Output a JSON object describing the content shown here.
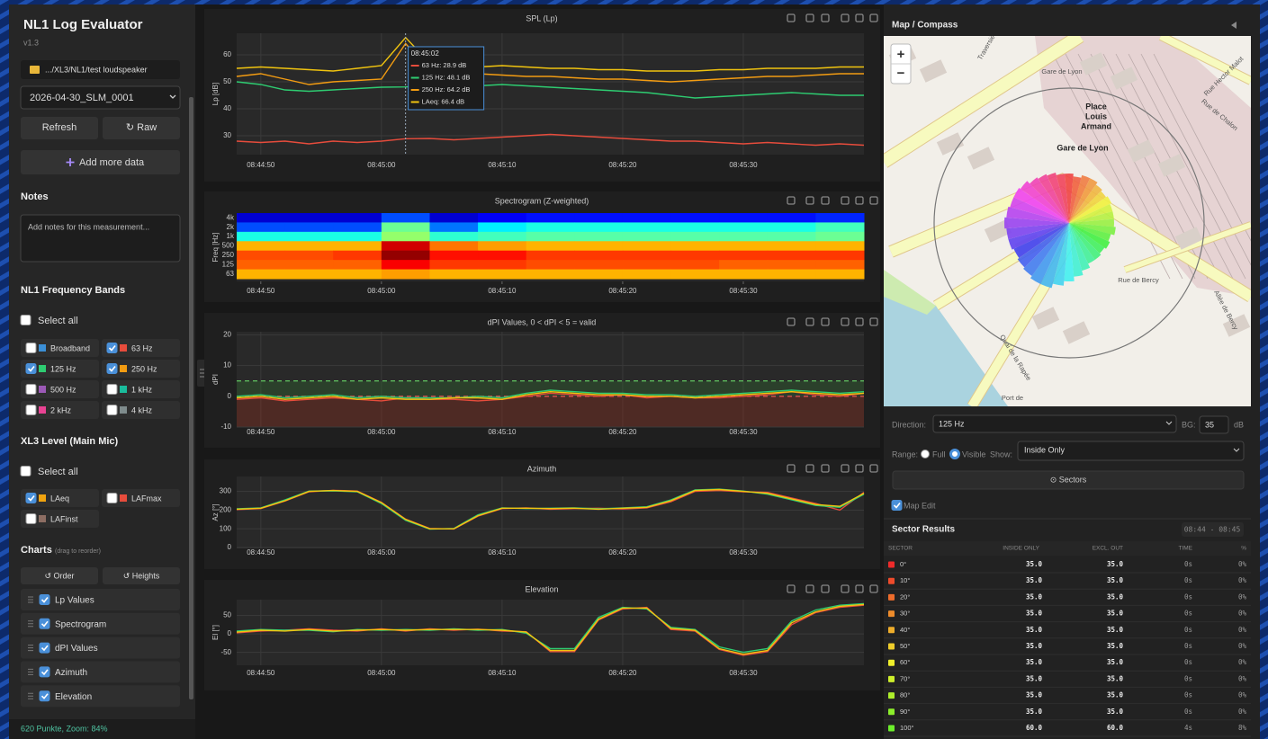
{
  "sidebar": {
    "title": "NL1 Log Evaluator",
    "version": "v1.3",
    "path": ".../XL3/NL1/test loudspeaker",
    "file": "2026-04-30_SLM_0001",
    "buttons": [
      "Refresh",
      "↻ Raw"
    ],
    "add_data": "Add more data",
    "notes_heading": "Notes",
    "notes_placeholder": "Add notes for this measurement...",
    "bands_heading": "NL1 Frequency Bands",
    "bands_select_all": "Select all",
    "bands": [
      {
        "label": "Broadband",
        "color": "#3b8fd6",
        "checked": false
      },
      {
        "label": "63 Hz",
        "color": "#e74c3c",
        "checked": true
      },
      {
        "label": "125 Hz",
        "color": "#2ecc71",
        "checked": true
      },
      {
        "label": "250 Hz",
        "color": "#f39c12",
        "checked": true
      },
      {
        "label": "500 Hz",
        "color": "#9b59b6",
        "checked": false
      },
      {
        "label": "1 kHz",
        "color": "#1abc9c",
        "checked": false
      },
      {
        "label": "2 kHz",
        "color": "#e84393",
        "checked": false
      },
      {
        "label": "4 kHz",
        "color": "#7f8c8d",
        "checked": false
      }
    ],
    "level_heading": "XL3 Level (Main Mic)",
    "level_select_all": "Select all",
    "levels": [
      {
        "label": "LAeq",
        "color": "#f1a40f",
        "checked": true
      },
      {
        "label": "LAFmax",
        "color": "#e74c3c",
        "checked": false
      },
      {
        "label": "LAFinst",
        "color": "#8d6e63",
        "checked": false
      }
    ],
    "charts_heading": "Charts",
    "charts_hint": "(drag to reorder)",
    "chart_buttons": [
      "↺ Order",
      "↺ Heights"
    ],
    "chart_list": [
      {
        "label": "Lp Values",
        "checked": true
      },
      {
        "label": "Spectrogram",
        "checked": true
      },
      {
        "label": "dPI Values",
        "checked": true
      },
      {
        "label": "Azimuth",
        "checked": true
      },
      {
        "label": "Elevation",
        "checked": true
      }
    ],
    "status": "620 Punkte, Zoom: 84%"
  },
  "chart_data": [
    {
      "type": "line",
      "title": "SPL (Lp)",
      "y_label": "Lp [dB]",
      "x": [
        "08:44:48",
        "08:44:50",
        "08:44:52",
        "08:44:54",
        "08:44:56",
        "08:44:58",
        "08:45:00",
        "08:45:02",
        "08:45:04",
        "08:45:06",
        "08:45:08",
        "08:45:10",
        "08:45:12",
        "08:45:14",
        "08:45:16",
        "08:45:18",
        "08:45:20",
        "08:45:22",
        "08:45:24",
        "08:45:26",
        "08:45:28",
        "08:45:30",
        "08:45:32",
        "08:45:34",
        "08:45:36",
        "08:45:38",
        "08:45:40"
      ],
      "xlim": [
        "08:44:48",
        "08:45:40"
      ],
      "xticks": [
        "08:44:50",
        "08:45:00",
        "08:45:10",
        "08:45:20",
        "08:45:30"
      ],
      "ylim": [
        23,
        68
      ],
      "yticks": [
        30,
        40,
        50,
        60
      ],
      "grid": true,
      "series": [
        {
          "color": "#e74c3c",
          "values": [
            28,
            27.5,
            28,
            27,
            28,
            27.5,
            28,
            28.9,
            29,
            28.5,
            29,
            29.5,
            30,
            30.5,
            30,
            29.5,
            29,
            28.5,
            28,
            28,
            27.5,
            27,
            27.5,
            27,
            26.5,
            27,
            26.5
          ]
        },
        {
          "color": "#2ecc71",
          "values": [
            50,
            49,
            47,
            46.5,
            47,
            47.5,
            48,
            48.1,
            48.5,
            49,
            48.5,
            49,
            48.5,
            48,
            47.5,
            47,
            46.5,
            46,
            45,
            44,
            44.5,
            45,
            45.5,
            46,
            45.5,
            45,
            45
          ]
        },
        {
          "color": "#f39c12",
          "values": [
            52,
            53,
            51,
            49,
            50,
            50.5,
            51,
            64.2,
            54,
            52.5,
            53,
            52.5,
            52,
            52,
            51.5,
            51,
            51,
            50.5,
            50,
            50.5,
            51,
            51.5,
            52,
            52,
            52.5,
            53,
            53
          ]
        },
        {
          "color": "#f1c40f",
          "values": [
            55,
            55.5,
            55,
            54.5,
            54,
            55,
            56,
            66.4,
            57,
            56,
            55.5,
            56,
            55.5,
            55,
            55,
            54.5,
            54.5,
            54,
            54,
            54,
            54.5,
            54.5,
            55,
            55,
            55,
            55.5,
            55.5
          ]
        }
      ],
      "tooltip": {
        "title": "08:45:02",
        "lines": [
          "63 Hz: 28.9 dB",
          "125 Hz: 48.1 dB",
          "250 Hz: 64.2 dB",
          "LAeq: 66.4 dB"
        ]
      }
    },
    {
      "type": "heatmap",
      "title": "Spectrogram (Z-weighted)",
      "y_label": "Freq [Hz]",
      "colormap": "jet",
      "zlim": [
        20,
        70
      ],
      "x": [
        "08:44:48",
        "08:44:52",
        "08:44:56",
        "08:45:00",
        "08:45:04",
        "08:45:08",
        "08:45:12",
        "08:45:16",
        "08:45:20",
        "08:45:24",
        "08:45:28",
        "08:45:32",
        "08:45:36",
        "08:45:40"
      ],
      "xlim": [
        "08:44:48",
        "08:45:40"
      ],
      "xticks": [
        "08:44:50",
        "08:45:00",
        "08:45:10",
        "08:45:20",
        "08:45:30"
      ],
      "categories": [
        "4k",
        "2k",
        "1k",
        "500",
        "250",
        "125",
        "63"
      ],
      "values": [
        [
          24,
          24,
          24,
          30,
          24,
          26,
          27,
          27,
          27,
          27,
          27,
          27,
          28
        ],
        [
          30,
          30,
          30,
          44,
          32,
          38,
          40,
          40,
          40,
          40,
          40,
          40,
          42
        ],
        [
          40,
          40,
          40,
          46,
          41,
          42,
          43,
          43,
          43,
          43,
          43,
          43,
          44
        ],
        [
          55,
          55,
          55,
          66,
          58,
          56,
          55,
          55,
          55,
          55,
          55,
          55,
          55
        ],
        [
          60,
          60,
          61,
          69,
          63,
          63,
          61,
          61,
          61,
          61,
          61,
          61,
          61
        ],
        [
          59,
          59,
          59,
          64,
          61,
          61,
          60,
          60,
          60,
          60,
          59,
          59,
          59
        ],
        [
          55,
          55,
          55,
          56,
          55,
          55,
          55,
          55,
          55,
          55,
          55,
          55,
          55
        ]
      ]
    },
    {
      "type": "line",
      "title": "dPI Values, 0 < dPI < 5 = valid",
      "y_label": "dPI",
      "x": [
        "08:44:48",
        "08:44:50",
        "08:44:52",
        "08:44:54",
        "08:44:56",
        "08:44:58",
        "08:45:00",
        "08:45:02",
        "08:45:04",
        "08:45:06",
        "08:45:08",
        "08:45:10",
        "08:45:12",
        "08:45:14",
        "08:45:16",
        "08:45:18",
        "08:45:20",
        "08:45:22",
        "08:45:24",
        "08:45:26",
        "08:45:28",
        "08:45:30",
        "08:45:32",
        "08:45:34",
        "08:45:36",
        "08:45:38",
        "08:45:40"
      ],
      "xlim": [
        "08:44:48",
        "08:45:40"
      ],
      "xticks": [
        "08:44:50",
        "08:45:00",
        "08:45:10",
        "08:45:20",
        "08:45:30"
      ],
      "ylim": [
        -10,
        21
      ],
      "yticks": [
        -10,
        0,
        10,
        20
      ],
      "grid": true,
      "thresholds": [
        {
          "value": 0,
          "color": "#d9534f"
        },
        {
          "value": 5,
          "color": "#5cb85c"
        }
      ],
      "series": [
        {
          "color": "#e74c3c",
          "values": [
            -1,
            -0.5,
            -1.5,
            -1,
            -0.5,
            -1,
            -1.5,
            -0.5,
            -1,
            -1,
            -1.5,
            -1,
            0,
            1,
            0.5,
            0,
            0.5,
            -0.5,
            0,
            -0.5,
            -0.5,
            0,
            0.5,
            1.5,
            0.5,
            0,
            1
          ]
        },
        {
          "color": "#2ecc71",
          "values": [
            0,
            0.5,
            -0.5,
            0,
            0.5,
            -0.5,
            0,
            -0.5,
            -0.5,
            -0.5,
            0,
            -0.5,
            1,
            2,
            1.5,
            1,
            1,
            0.5,
            0.5,
            0,
            0.5,
            1,
            1.5,
            2,
            1.5,
            1,
            1.5
          ]
        },
        {
          "color": "#f1c40f",
          "values": [
            -0.5,
            0,
            -1,
            -0.5,
            0,
            -1,
            -0.5,
            -1,
            -1,
            -0.5,
            -0.5,
            -1,
            0.5,
            1.5,
            1,
            0.5,
            0.5,
            0,
            0,
            -0.5,
            0,
            0.5,
            1,
            1.5,
            1,
            0.5,
            1
          ]
        }
      ]
    },
    {
      "type": "line",
      "title": "Azimuth",
      "y_label": "Az [°]",
      "x": [
        "08:44:48",
        "08:44:50",
        "08:44:52",
        "08:44:54",
        "08:44:56",
        "08:44:58",
        "08:45:00",
        "08:45:02",
        "08:45:04",
        "08:45:06",
        "08:45:08",
        "08:45:10",
        "08:45:12",
        "08:45:14",
        "08:45:16",
        "08:45:18",
        "08:45:20",
        "08:45:22",
        "08:45:24",
        "08:45:26",
        "08:45:28",
        "08:45:30",
        "08:45:32",
        "08:45:34",
        "08:45:36",
        "08:45:38",
        "08:45:40"
      ],
      "xlim": [
        "08:44:48",
        "08:45:40"
      ],
      "xticks": [
        "08:44:50",
        "08:45:00",
        "08:45:10",
        "08:45:20",
        "08:45:30"
      ],
      "ylim": [
        -5,
        380
      ],
      "yticks": [
        0,
        100,
        200,
        300
      ],
      "grid": true,
      "series": [
        {
          "color": "#e74c3c",
          "values": [
            203,
            208,
            248,
            298,
            306,
            302,
            242,
            152,
            102,
            99,
            168,
            208,
            212,
            205,
            208,
            210,
            206,
            212,
            245,
            300,
            305,
            298,
            295,
            265,
            235,
            200,
            295
          ]
        },
        {
          "color": "#2ecc71",
          "values": [
            207,
            212,
            255,
            302,
            303,
            298,
            235,
            145,
            98,
            102,
            175,
            212,
            208,
            210,
            212,
            207,
            212,
            218,
            255,
            308,
            312,
            302,
            285,
            255,
            225,
            215,
            285
          ]
        },
        {
          "color": "#f1c40f",
          "values": [
            205,
            210,
            250,
            300,
            305,
            300,
            240,
            150,
            100,
            100,
            170,
            210,
            210,
            208,
            210,
            205,
            210,
            215,
            250,
            305,
            310,
            300,
            290,
            260,
            230,
            220,
            290
          ]
        }
      ]
    },
    {
      "type": "line",
      "title": "Elevation",
      "y_label": "El [°]",
      "x": [
        "08:44:48",
        "08:44:50",
        "08:44:52",
        "08:44:54",
        "08:44:56",
        "08:44:58",
        "08:45:00",
        "08:45:02",
        "08:45:04",
        "08:45:06",
        "08:45:08",
        "08:45:10",
        "08:45:12",
        "08:45:14",
        "08:45:16",
        "08:45:18",
        "08:45:20",
        "08:45:22",
        "08:45:24",
        "08:45:26",
        "08:45:28",
        "08:45:30",
        "08:45:32",
        "08:45:34",
        "08:45:36",
        "08:45:38",
        "08:45:40"
      ],
      "xlim": [
        "08:44:48",
        "08:45:40"
      ],
      "xticks": [
        "08:44:50",
        "08:45:00",
        "08:45:10",
        "08:45:20",
        "08:45:30"
      ],
      "ylim": [
        -85,
        93
      ],
      "yticks": [
        -50,
        0,
        50
      ],
      "grid": true,
      "series": [
        {
          "color": "#e74c3c",
          "values": [
            3,
            8,
            10,
            14,
            10,
            8,
            14,
            8,
            14,
            10,
            13,
            8,
            6,
            -48,
            -48,
            38,
            68,
            72,
            12,
            8,
            -42,
            -58,
            -48,
            25,
            58,
            72,
            78
          ]
        },
        {
          "color": "#2ecc71",
          "values": [
            8,
            12,
            10,
            10,
            6,
            12,
            10,
            12,
            10,
            14,
            10,
            12,
            2,
            -40,
            -40,
            45,
            72,
            68,
            18,
            12,
            -35,
            -50,
            -40,
            35,
            65,
            78,
            82
          ]
        },
        {
          "color": "#f1c40f",
          "values": [
            5,
            10,
            8,
            12,
            8,
            10,
            12,
            10,
            12,
            12,
            12,
            10,
            5,
            -45,
            -45,
            40,
            70,
            70,
            15,
            10,
            -40,
            -55,
            -45,
            30,
            60,
            75,
            80
          ]
        }
      ]
    }
  ],
  "map": {
    "title": "Map / Compass",
    "zoom": [
      "+",
      "−"
    ],
    "labels": [
      "Traversière",
      "Gare de Lyon",
      "Place",
      "Louis",
      "Armand",
      "Gare de Lyon",
      "Rue de Chalon",
      "Rue de Bercy",
      "Quai de la Rapée",
      "Port de",
      "Rue Hector Malot",
      "Allée de Bercy"
    ],
    "rose": {
      "directions": [
        0,
        10,
        20,
        30,
        40,
        50,
        60,
        70,
        80,
        90,
        100,
        110,
        120,
        130,
        140,
        150,
        160,
        170,
        180,
        190,
        200,
        210,
        220,
        230,
        240,
        250,
        260,
        270,
        280,
        290,
        300,
        310,
        320,
        330,
        340,
        350
      ],
      "values": [
        55,
        52,
        55,
        55,
        52,
        50,
        52,
        50,
        50,
        50,
        52,
        48,
        50,
        48,
        50,
        50,
        55,
        60,
        65,
        70,
        75,
        75,
        72,
        70,
        68,
        70,
        70,
        72,
        70,
        68,
        68,
        66,
        62,
        60,
        58,
        55
      ],
      "rlim": [
        0,
        80
      ]
    }
  },
  "controls": {
    "direction_label": "Direction:",
    "direction_value": "125 Hz",
    "bg_label": "BG:",
    "bg_value": "35",
    "bg_unit": "dB",
    "range_label": "Range:",
    "range_options": [
      {
        "label": "Full",
        "checked": false
      },
      {
        "label": "Visible",
        "checked": true
      }
    ],
    "show_label": "Show:",
    "show_value": "Inside Only",
    "sectors_button": "⊙ Sectors",
    "map_edit": {
      "label": "Map Edit",
      "checked": true
    }
  },
  "sector_results": {
    "title": "Sector Results",
    "time_range": "08:44 - 08:45",
    "headers": [
      "SECTOR",
      "INSIDE ONLY",
      "EXCL. OUT",
      "TIME",
      "%"
    ],
    "rows": [
      [
        "0°",
        "35.0",
        "35.0",
        "0s",
        "0%"
      ],
      [
        "10°",
        "35.0",
        "35.0",
        "0s",
        "0%"
      ],
      [
        "20°",
        "35.0",
        "35.0",
        "0s",
        "0%"
      ],
      [
        "30°",
        "35.0",
        "35.0",
        "0s",
        "0%"
      ],
      [
        "40°",
        "35.0",
        "35.0",
        "0s",
        "0%"
      ],
      [
        "50°",
        "35.0",
        "35.0",
        "0s",
        "0%"
      ],
      [
        "60°",
        "35.0",
        "35.0",
        "0s",
        "0%"
      ],
      [
        "70°",
        "35.0",
        "35.0",
        "0s",
        "0%"
      ],
      [
        "80°",
        "35.0",
        "35.0",
        "0s",
        "0%"
      ],
      [
        "90°",
        "35.0",
        "35.0",
        "0s",
        "0%"
      ],
      [
        "100°",
        "60.0",
        "60.0",
        "4s",
        "8%"
      ]
    ]
  }
}
